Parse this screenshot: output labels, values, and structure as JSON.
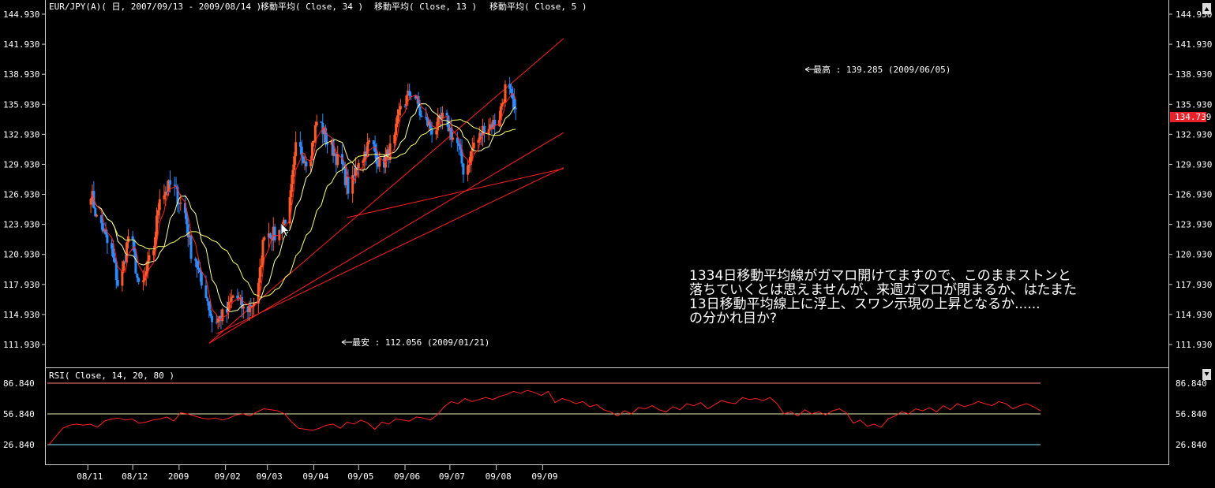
{
  "chart_data": [
    {
      "type": "candlestick",
      "title": "EUR/JPY(A)( 日, 2007/09/13 - 2009/08/14 )",
      "indicators": [
        {
          "name": "移動平均( Close, 34 )",
          "period": 34,
          "color": "#ffff66"
        },
        {
          "name": "移動平均( Close, 13 )",
          "period": 13,
          "color": "#ffffaa"
        },
        {
          "name": "移動平均( Close, 5 )",
          "period": 5,
          "color": "#ff2020"
        }
      ],
      "x_tick_labels": [
        "08/11",
        "08/12",
        "2009",
        "09/02",
        "09/03",
        "09/04",
        "09/05",
        "09/06",
        "09/07",
        "09/08",
        "09/09"
      ],
      "y_tick_labels": [
        "144.930",
        "141.930",
        "138.930",
        "135.930",
        "132.930",
        "129.930",
        "126.930",
        "123.930",
        "120.930",
        "117.930",
        "114.930",
        "111.930"
      ],
      "ylim": [
        110.4,
        145.7
      ],
      "current_price": "134.739",
      "closes_by_week": [
        {
          "week": "2008/11/03",
          "close": 124.5
        },
        {
          "week": "2008/11/10",
          "close": 122.0
        },
        {
          "week": "2008/11/17",
          "close": 118.0
        },
        {
          "week": "2008/11/24",
          "close": 122.8
        },
        {
          "week": "2008/12/01",
          "close": 117.5
        },
        {
          "week": "2008/12/08",
          "close": 120.2
        },
        {
          "week": "2008/12/15",
          "close": 127.0
        },
        {
          "week": "2008/12/22",
          "close": 127.8
        },
        {
          "week": "2008/12/29",
          "close": 126.0
        },
        {
          "week": "2009/01/05",
          "close": 121.2
        },
        {
          "week": "2009/01/12",
          "close": 117.8
        },
        {
          "week": "2009/01/19",
          "close": 114.3
        },
        {
          "week": "2009/01/26",
          "close": 114.8
        },
        {
          "week": "2009/02/02",
          "close": 116.8
        },
        {
          "week": "2009/02/09",
          "close": 115.4
        },
        {
          "week": "2009/02/16",
          "close": 116.2
        },
        {
          "week": "2009/02/23",
          "close": 123.3
        },
        {
          "week": "2009/03/02",
          "close": 122.8
        },
        {
          "week": "2009/03/09",
          "close": 124.6
        },
        {
          "week": "2009/03/16",
          "close": 131.5
        },
        {
          "week": "2009/03/23",
          "close": 130.4
        },
        {
          "week": "2009/03/30",
          "close": 134.2
        },
        {
          "week": "2009/04/06",
          "close": 132.1
        },
        {
          "week": "2009/04/13",
          "close": 130.3
        },
        {
          "week": "2009/04/20",
          "close": 127.5
        },
        {
          "week": "2009/04/27",
          "close": 130.5
        },
        {
          "week": "2009/05/04",
          "close": 132.0
        },
        {
          "week": "2009/05/11",
          "close": 129.9
        },
        {
          "week": "2009/05/18",
          "close": 131.4
        },
        {
          "week": "2009/05/25",
          "close": 135.9
        },
        {
          "week": "2009/06/01",
          "close": 137.2
        },
        {
          "week": "2009/06/08",
          "close": 134.5
        },
        {
          "week": "2009/06/15",
          "close": 133.4
        },
        {
          "week": "2009/06/22",
          "close": 134.5
        },
        {
          "week": "2009/06/29",
          "close": 132.6
        },
        {
          "week": "2009/07/06",
          "close": 129.4
        },
        {
          "week": "2009/07/13",
          "close": 132.0
        },
        {
          "week": "2009/07/20",
          "close": 133.7
        },
        {
          "week": "2009/07/27",
          "close": 134.1
        },
        {
          "week": "2009/08/03",
          "close": 137.5
        },
        {
          "week": "2009/08/10",
          "close": 134.7
        }
      ],
      "annotations": {
        "high_label": "最高 : 139.285 (2009/06/05)",
        "low_label": "最安 : 112.056 (2009/01/21)",
        "note_lines": [
          "1334日移動平均線がガマロ開けてますので、このままストンと",
          "落ちていくとは思えませんが、来週ガマロが閉まるか、はたまた",
          "13日移動平均線上に浮上、スワン示現の上昇となるか......",
          "の分かれ目か?"
        ]
      },
      "trendlines": [
        {
          "from_date": "2009/01/21",
          "from": 112.056,
          "to_date": "2009/09/15",
          "to": 142.5
        },
        {
          "from_date": "2009/01/21",
          "from": 112.056,
          "to_date": "2009/09/15",
          "to": 133.1
        },
        {
          "from_date": "2009/01/26",
          "from": 113.0,
          "to_date": "2009/09/15",
          "to": 129.6
        },
        {
          "from_date": "2009/04/23",
          "from": 124.6,
          "to_date": "2009/09/15",
          "to": 129.5
        }
      ],
      "trendline_color": "#ff2020"
    },
    {
      "type": "line",
      "title": "RSI( Close, 14, 20, 80 )",
      "x_tick_labels": [
        "08/11",
        "08/12",
        "2009",
        "09/02",
        "09/03",
        "09/04",
        "09/05",
        "09/06",
        "09/07",
        "09/08",
        "09/09"
      ],
      "y_tick_labels": [
        "86.840",
        "56.840",
        "26.840"
      ],
      "levels": [
        80,
        50,
        20
      ],
      "series_color": "#ff2020",
      "values": [
        20,
        28,
        36,
        39,
        40,
        39,
        40,
        37,
        43,
        45,
        46,
        44,
        45,
        41,
        42,
        44,
        45,
        47,
        43,
        51,
        50,
        48,
        46,
        45,
        46,
        44,
        46,
        49,
        50,
        48,
        52,
        55,
        54,
        53,
        50,
        42,
        36,
        35,
        34,
        36,
        39,
        40,
        36,
        42,
        40,
        44,
        41,
        35,
        42,
        40,
        45,
        44,
        43,
        47,
        46,
        44,
        49,
        57,
        62,
        60,
        65,
        62,
        64,
        66,
        64,
        67,
        69,
        72,
        70,
        73,
        71,
        68,
        72,
        61,
        65,
        63,
        60,
        62,
        57,
        59,
        54,
        52,
        48,
        53,
        50,
        56,
        55,
        58,
        54,
        52,
        57,
        54,
        60,
        58,
        61,
        55,
        59,
        63,
        61,
        60,
        66,
        64,
        65,
        63,
        66,
        60,
        50,
        52,
        48,
        54,
        50,
        52,
        49,
        53,
        55,
        51,
        41,
        44,
        38,
        40,
        37,
        45,
        48,
        52,
        50,
        55,
        53,
        56,
        52,
        58,
        54,
        60,
        57,
        59,
        62,
        60,
        58,
        62,
        60,
        55,
        58,
        60,
        57,
        53
      ]
    }
  ]
}
